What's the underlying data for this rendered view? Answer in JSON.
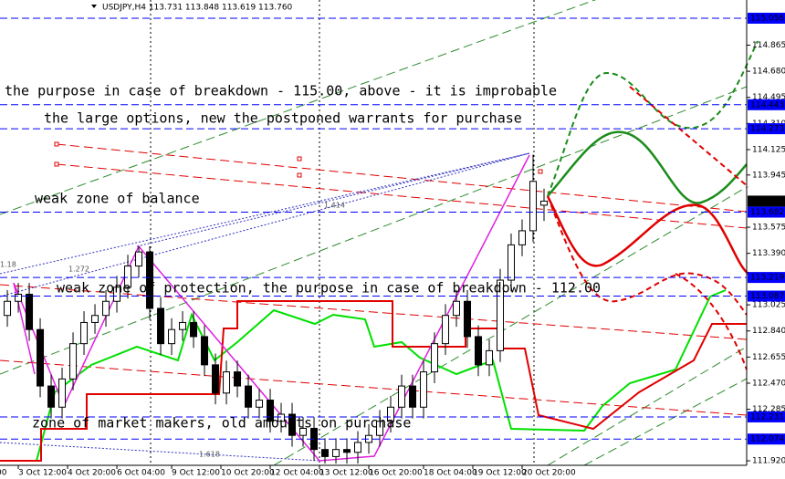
{
  "chart_data": {
    "type": "candlestick",
    "title": "USDJPY,H4 113.731 113.848 113.619 113.760",
    "xlim": [
      -0.67,
      67.5
    ],
    "ylim": [
      111.888,
      115.185
    ],
    "xticks": [
      {
        "value": -1,
        "label": "00"
      },
      {
        "value": 1,
        "label": "3 Oct 12:00"
      },
      {
        "value": 5.5,
        "label": "4 Oct 20:00"
      },
      {
        "value": 10,
        "label": "6 Oct 04:00"
      },
      {
        "value": 15,
        "label": "9 Oct 12:00"
      },
      {
        "value": 19.5,
        "label": "10 Oct 20:00"
      },
      {
        "value": 24,
        "label": "12 Oct 04:00"
      },
      {
        "value": 28.5,
        "label": "13 Oct 12:00"
      },
      {
        "value": 33,
        "label": "16 Oct 20:00"
      },
      {
        "value": 38,
        "label": "18 Oct 04:00"
      },
      {
        "value": 42.5,
        "label": "19 Oct 12:00"
      },
      {
        "value": 47,
        "label": "20 Oct 20:00"
      }
    ],
    "yticks": [
      114.865,
      {
        "value": 114.68,
        "label": "114.680"
      },
      114.495,
      {
        "value": 114.31,
        "label": "114.310"
      },
      114.125,
      113.945,
      113.575,
      {
        "value": 113.39,
        "label": "113.390"
      },
      113.025,
      {
        "value": 112.84,
        "label": "112.840"
      },
      112.655,
      {
        "value": 112.47,
        "label": "112.470"
      },
      112.285,
      {
        "value": 111.92,
        "label": "111.920"
      }
    ],
    "levels": [
      115.056,
      114.443,
      114.273,
      113.682,
      113.219,
      113.087,
      112.231,
      112.074
    ],
    "last_price": {
      "value": 113.76,
      "label": "113.760"
    },
    "open": [
      112.95,
      113.05,
      113.1,
      112.85,
      112.45,
      112.3,
      112.5,
      112.75,
      112.9,
      112.95,
      113.05,
      113.15,
      113.3,
      113.4,
      113.0,
      112.75,
      112.85,
      112.9,
      112.8,
      112.6,
      112.4,
      112.55,
      112.45,
      112.3,
      112.35,
      112.2,
      112.25,
      112.1,
      112.15,
      112.0,
      111.95,
      112.0,
      111.98,
      112.05,
      112.1,
      112.2,
      112.3,
      112.45,
      112.3,
      112.55,
      112.75,
      112.95,
      113.05,
      112.8,
      112.6,
      112.7,
      113.2,
      113.45,
      113.55,
      113.731
    ],
    "high": [
      113.13,
      113.18,
      113.18,
      112.93,
      112.53,
      112.58,
      112.83,
      112.98,
      113.03,
      113.13,
      113.23,
      113.38,
      113.44,
      113.44,
      113.08,
      112.93,
      112.98,
      112.98,
      112.88,
      112.68,
      112.63,
      112.63,
      112.53,
      112.43,
      112.43,
      112.33,
      112.33,
      112.23,
      112.23,
      112.08,
      112.08,
      112.08,
      112.13,
      112.18,
      112.28,
      112.38,
      112.53,
      112.53,
      112.63,
      112.83,
      113.03,
      113.13,
      113.13,
      112.88,
      112.78,
      113.28,
      113.53,
      113.63,
      114.09,
      113.848
    ],
    "low": [
      112.87,
      112.97,
      112.77,
      112.37,
      112.22,
      112.22,
      112.42,
      112.67,
      112.82,
      112.87,
      112.97,
      113.07,
      113.22,
      112.92,
      112.67,
      112.67,
      112.77,
      112.72,
      112.52,
      112.32,
      112.32,
      112.37,
      112.22,
      112.22,
      112.12,
      112.12,
      112.02,
      112.02,
      111.92,
      111.9,
      111.9,
      111.9,
      111.9,
      111.97,
      112.02,
      112.12,
      112.22,
      112.22,
      112.22,
      112.47,
      112.67,
      112.87,
      112.72,
      112.52,
      112.52,
      112.62,
      113.12,
      113.37,
      113.47,
      113.619
    ],
    "close": [
      113.05,
      113.1,
      112.85,
      112.45,
      112.3,
      112.5,
      112.75,
      112.9,
      112.95,
      113.05,
      113.15,
      113.3,
      113.4,
      113.0,
      112.75,
      112.85,
      112.9,
      112.8,
      112.6,
      112.4,
      112.55,
      112.45,
      112.3,
      112.35,
      112.2,
      112.25,
      112.1,
      112.15,
      112.0,
      111.95,
      112.0,
      111.98,
      112.05,
      112.1,
      112.2,
      112.3,
      112.45,
      112.3,
      112.55,
      112.75,
      112.95,
      113.05,
      112.8,
      112.6,
      112.7,
      113.2,
      113.45,
      113.55,
      113.9,
      113.76
    ],
    "annotations": [
      "the purpose in case of breakdown - 115.00, above - it is improbable",
      "the large options, new the postponed warrants for purchase",
      "weak zone of balance",
      "weak zone of protection, the purpose in case of breakdown - 112.00",
      "zone of market makers, old amounts on purchase"
    ],
    "fib_labels": [
      "1.18",
      "1.272",
      "1.414",
      "1.618"
    ],
    "level_color": "#0000ff"
  }
}
